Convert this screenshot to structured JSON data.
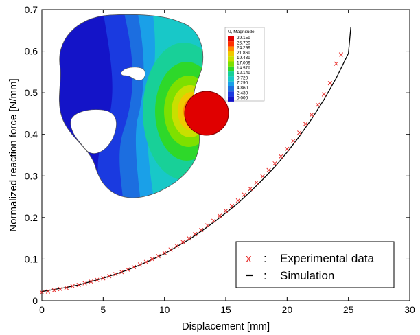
{
  "chart_data": {
    "type": "scatter",
    "title": "",
    "xlabel": "Displacement  [mm]",
    "ylabel": "Normalized reaction force [N/mm]",
    "xlim": [
      0,
      30
    ],
    "ylim": [
      0,
      0.7
    ],
    "x_ticks": [
      0,
      5,
      10,
      15,
      20,
      25,
      30
    ],
    "y_ticks": [
      0,
      0.1,
      0.2,
      0.3,
      0.4,
      0.5,
      0.6,
      0.7
    ],
    "grid": false,
    "legend": {
      "placement": "bottom-right",
      "entries": [
        {
          "marker": "x",
          "label": "Experimental data",
          "color": "#e8312f"
        },
        {
          "marker": "—",
          "label": "Simulation",
          "color": "#000000"
        }
      ]
    },
    "series": [
      {
        "name": "Experimental data",
        "style": "markers",
        "marker": "x",
        "color": "#e8312f",
        "x": [
          0.0,
          0.5,
          1.0,
          1.5,
          2.0,
          2.5,
          3.0,
          3.5,
          4.0,
          4.5,
          5.0,
          5.5,
          6.0,
          6.5,
          7.0,
          7.5,
          8.0,
          8.5,
          9.0,
          9.5,
          10.0,
          10.5,
          11.0,
          11.5,
          12.0,
          12.5,
          13.0,
          13.5,
          14.0,
          14.5,
          15.0,
          15.5,
          16.0,
          16.5,
          17.0,
          17.5,
          18.0,
          18.5,
          19.0,
          19.5,
          20.0,
          20.5,
          21.0,
          21.5,
          22.0,
          22.5,
          23.0,
          23.5,
          24.0,
          24.4
        ],
        "y": [
          0.02,
          0.022,
          0.025,
          0.028,
          0.031,
          0.035,
          0.038,
          0.042,
          0.046,
          0.05,
          0.054,
          0.059,
          0.064,
          0.069,
          0.075,
          0.081,
          0.087,
          0.093,
          0.1,
          0.107,
          0.115,
          0.123,
          0.132,
          0.141,
          0.15,
          0.16,
          0.17,
          0.181,
          0.192,
          0.204,
          0.216,
          0.228,
          0.241,
          0.255,
          0.269,
          0.284,
          0.299,
          0.314,
          0.33,
          0.347,
          0.365,
          0.384,
          0.404,
          0.425,
          0.447,
          0.471,
          0.496,
          0.523,
          0.57,
          0.592
        ]
      },
      {
        "name": "Simulation",
        "style": "line",
        "color": "#000000",
        "x": [
          0,
          1,
          2,
          3,
          4,
          5,
          6,
          7,
          8,
          9,
          10,
          11,
          12,
          13,
          14,
          15,
          16,
          17,
          18,
          19,
          20,
          21,
          22,
          23,
          24,
          25,
          25.2
        ],
        "y": [
          0.022,
          0.027,
          0.032,
          0.038,
          0.046,
          0.054,
          0.064,
          0.074,
          0.086,
          0.099,
          0.113,
          0.13,
          0.147,
          0.167,
          0.188,
          0.211,
          0.235,
          0.262,
          0.291,
          0.322,
          0.357,
          0.395,
          0.437,
          0.483,
          0.535,
          0.595,
          0.658
        ]
      }
    ]
  },
  "inset": {
    "description_label": "U, Magnitude",
    "colorbar_title": "U, Magnitude",
    "colorbar_values": [
      "29.159",
      "26.729",
      "24.299",
      "21.869",
      "19.439",
      "17.009",
      "14.579",
      "12.149",
      "9.720",
      "7.290",
      "4.860",
      "2.430",
      "0.000"
    ],
    "colorbar_colors": [
      "#e00000",
      "#ff3000",
      "#ff8a00",
      "#f0c800",
      "#c8e000",
      "#7ee000",
      "#2ed82a",
      "#18d098",
      "#18c8c8",
      "#1aa0e8",
      "#1c6ee0",
      "#1a3ae0",
      "#1414c8"
    ]
  }
}
